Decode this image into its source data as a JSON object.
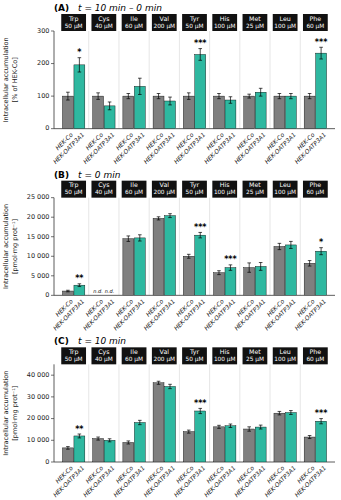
{
  "chart_data": [
    {
      "type": "bar",
      "panel_label": "(A)",
      "title": "t = 10 min – 0 min",
      "ylabel": "Intracellular accumulation\n[% of HEK-Co]",
      "categories": [
        "Trp\n50 μM",
        "Cys\n40 μM",
        "Ile\n60 μM",
        "Val\n200 μM",
        "Tyr\n50 μM",
        "His\n100 μM",
        "Met\n25 μM",
        "Leu\n100 μM",
        "Phe\n60 μM"
      ],
      "series": [
        {
          "name": "HEK-Co",
          "color": "#7f7f7f",
          "values": [
            100,
            100,
            100,
            100,
            100,
            100,
            100,
            100,
            100
          ],
          "errors": [
            12,
            10,
            8,
            8,
            10,
            8,
            6,
            8,
            8
          ]
        },
        {
          "name": "HEK-OATP3A1",
          "color": "#2eb8a0",
          "values": [
            196,
            70,
            130,
            85,
            228,
            88,
            112,
            100,
            232
          ],
          "errors": [
            22,
            12,
            25,
            12,
            18,
            10,
            12,
            8,
            18
          ]
        }
      ],
      "significance": [
        "*",
        null,
        null,
        null,
        "***",
        null,
        null,
        null,
        "***"
      ],
      "ylim": [
        0,
        300
      ],
      "yticks": [
        0,
        100,
        200,
        300
      ]
    },
    {
      "type": "bar",
      "panel_label": "(B)",
      "title": "t = 0 min",
      "ylabel": "Intracellular accumulation\n[pmol·mg prot⁻¹]",
      "categories": [
        "Trp\n50 μM",
        "Cys\n40 μM",
        "Ile\n60 μM",
        "Val\n200 μM",
        "Tyr\n50 μM",
        "His\n100 μM",
        "Met\n25 μM",
        "Leu\n100 μM",
        "Phe\n60 μM"
      ],
      "series": [
        {
          "name": "HEK-Co",
          "color": "#7f7f7f",
          "values": [
            1100,
            null,
            14500,
            19700,
            10000,
            5800,
            7100,
            12500,
            8200
          ],
          "value_labels": [
            null,
            "n.d.",
            null,
            null,
            null,
            null,
            null,
            null,
            null
          ],
          "errors": [
            200,
            null,
            700,
            400,
            500,
            500,
            1200,
            800,
            700
          ]
        },
        {
          "name": "HEK-OATP3A1",
          "color": "#2eb8a0",
          "values": [
            2600,
            null,
            14700,
            20400,
            15400,
            7100,
            7400,
            12900,
            11300
          ],
          "value_labels": [
            null,
            "n.d.",
            null,
            null,
            null,
            null,
            null,
            null,
            null
          ],
          "errors": [
            350,
            null,
            800,
            500,
            700,
            700,
            1000,
            900,
            900
          ]
        }
      ],
      "significance": [
        "**",
        null,
        null,
        null,
        "***",
        "***",
        null,
        null,
        "*"
      ],
      "ylim": [
        0,
        25000
      ],
      "yticks": [
        0,
        {
          "value": 5000,
          "label": "5 000"
        },
        {
          "value": 10000,
          "label": "10 000"
        },
        {
          "value": 15000,
          "label": "15 000"
        },
        {
          "value": 20000,
          "label": "20 000"
        },
        {
          "value": 25000,
          "label": "25 000"
        }
      ]
    },
    {
      "type": "bar",
      "panel_label": "(C)",
      "title": "t = 10 min",
      "ylabel": "Intracellular accumulation\n[pmol·mg prot⁻¹]",
      "categories": [
        "Trp\n50 μM",
        "Cys\n40 μM",
        "Ile\n60 μM",
        "Val\n200 μM",
        "Tyr\n50 μM",
        "His\n100 μM",
        "Met\n25 μM",
        "Leu\n100 μM",
        "Phe\n60 μM"
      ],
      "series": [
        {
          "name": "HEK-Co",
          "color": "#7f7f7f",
          "values": [
            6500,
            10800,
            9000,
            36500,
            14000,
            16200,
            15200,
            22500,
            11500
          ],
          "errors": [
            600,
            700,
            700,
            700,
            700,
            700,
            1000,
            800,
            700
          ]
        },
        {
          "name": "HEK-OATP3A1",
          "color": "#2eb8a0",
          "values": [
            12000,
            10000,
            18200,
            34800,
            23500,
            16700,
            16100,
            22800,
            18800
          ],
          "errors": [
            900,
            700,
            1000,
            1000,
            1200,
            800,
            900,
            900,
            1200
          ]
        }
      ],
      "significance": [
        "**",
        null,
        null,
        null,
        "***",
        null,
        null,
        null,
        "***"
      ],
      "ylim": [
        0,
        45000
      ],
      "yticks": [
        0,
        {
          "value": 10000,
          "label": "10 000"
        },
        {
          "value": 20000,
          "label": "20 000"
        },
        {
          "value": 30000,
          "label": "30 000"
        },
        {
          "value": 40000,
          "label": "40 000"
        }
      ]
    }
  ]
}
